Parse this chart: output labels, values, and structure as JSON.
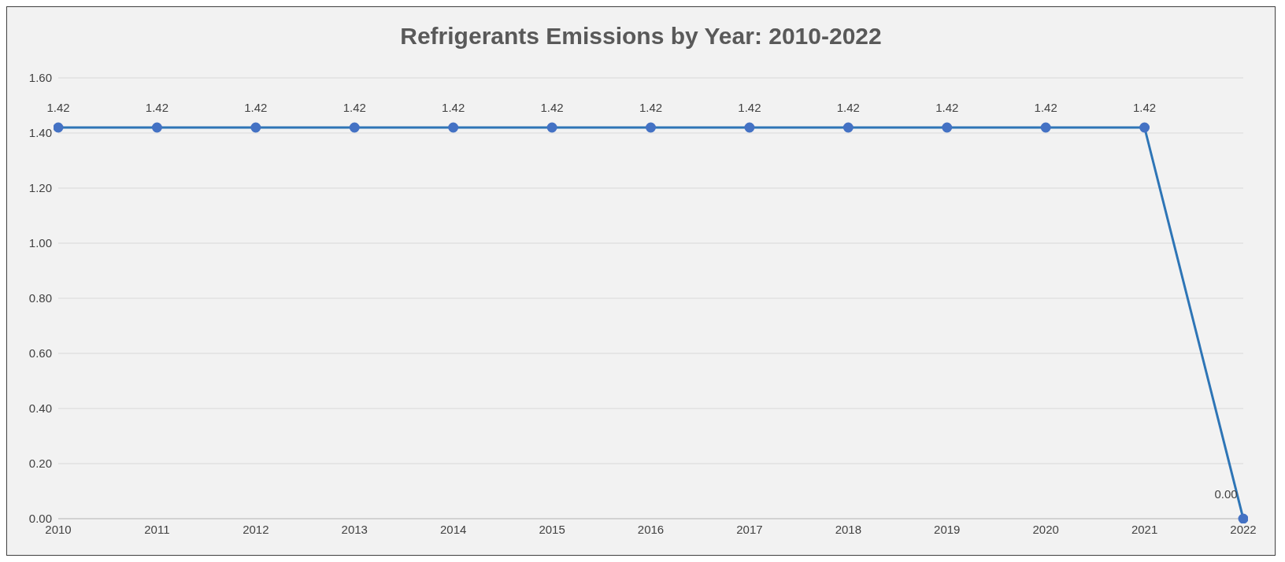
{
  "chart_data": {
    "type": "line",
    "title": "Refrigerants Emissions by Year: 2010-2022",
    "categories": [
      "2010",
      "2011",
      "2012",
      "2013",
      "2014",
      "2015",
      "2016",
      "2017",
      "2018",
      "2019",
      "2020",
      "2021",
      "2022"
    ],
    "series": [
      {
        "color": "#2e75b6",
        "values": [
          1.42,
          1.42,
          1.42,
          1.42,
          1.42,
          1.42,
          1.42,
          1.42,
          1.42,
          1.42,
          1.42,
          1.42,
          0
        ],
        "value_labels": [
          "1.42",
          "1.42",
          "1.42",
          "1.42",
          "1.42",
          "1.42",
          "1.42",
          "1.42",
          "1.42",
          "1.42",
          "1.42",
          "1.42",
          "0.00"
        ]
      }
    ],
    "ylim": [
      0,
      1.6
    ],
    "yticks": [
      {
        "value": 0,
        "label": "0.00"
      },
      {
        "value": 0.2,
        "label": "0.20"
      },
      {
        "value": 0.4,
        "label": "0.40"
      },
      {
        "value": 0.6,
        "label": "0.60"
      },
      {
        "value": 0.8,
        "label": "0.80"
      },
      {
        "value": 1,
        "label": "1.00"
      },
      {
        "value": 1.2,
        "label": "1.20"
      },
      {
        "value": 1.4,
        "label": "1.40"
      },
      {
        "value": 1.6,
        "label": "1.60"
      }
    ],
    "grid": "y",
    "marker": "circle",
    "line_style": "solid",
    "legend": false
  }
}
